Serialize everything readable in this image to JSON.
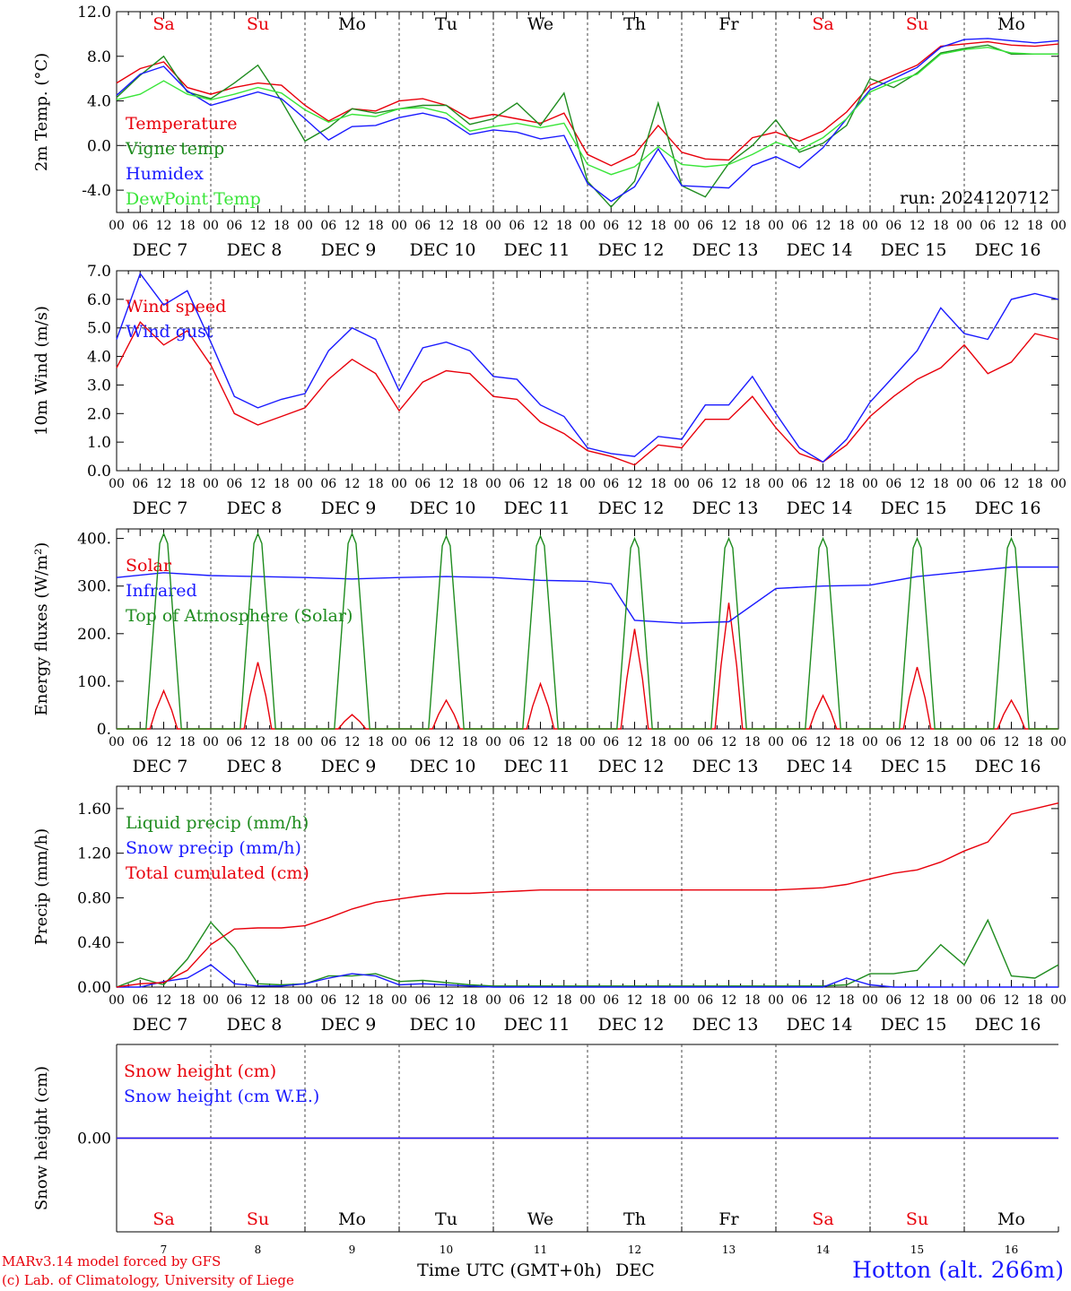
{
  "colors": {
    "red": "#e8000b",
    "green": "#1f8c1f",
    "blue": "#1a1aff",
    "lightgreen": "#39e539",
    "grey": "#333333"
  },
  "days": [
    "7",
    "8",
    "9",
    "10",
    "11",
    "12",
    "13",
    "14",
    "15",
    "16"
  ],
  "day_labels": [
    "DEC  7",
    "DEC  8",
    "DEC  9",
    "DEC 10",
    "DEC 11",
    "DEC 12",
    "DEC 13",
    "DEC 14",
    "DEC 15",
    "DEC 16"
  ],
  "weekdays": [
    {
      "label": "Sa",
      "color": "red"
    },
    {
      "label": "Su",
      "color": "red"
    },
    {
      "label": "Mo",
      "color": "black"
    },
    {
      "label": "Tu",
      "color": "black"
    },
    {
      "label": "We",
      "color": "black"
    },
    {
      "label": "Th",
      "color": "black"
    },
    {
      "label": "Fr",
      "color": "black"
    },
    {
      "label": "Sa",
      "color": "red"
    },
    {
      "label": "Su",
      "color": "red"
    },
    {
      "label": "Mo",
      "color": "black"
    }
  ],
  "hour_labels": [
    "00",
    "06",
    "12",
    "18"
  ],
  "footer": {
    "credit_line1": "MARv3.14 model forced by GFS",
    "credit_line2": "(c) Lab. of Climatology, University of Liege",
    "xlabel": "Time UTC (GMT+0h)",
    "xunit": "DEC",
    "station": "Hotton (alt. 266m)"
  },
  "chart_data": [
    {
      "type": "line",
      "ylabel": "2m Temp. (°C)",
      "ylim": [
        -6,
        12
      ],
      "yticks": [
        -4,
        0,
        4,
        8,
        12
      ],
      "ytick_labels": [
        "-4.0",
        "0.0",
        "4.0",
        "8.0",
        "12.0"
      ],
      "ref_line": 0,
      "annotation": "run: 2024120712",
      "x_hours": [
        0,
        6,
        12,
        18,
        24,
        30,
        36,
        42,
        48,
        54,
        60,
        66,
        72,
        78,
        84,
        90,
        96,
        102,
        108,
        114,
        120,
        126,
        132,
        138,
        144,
        150,
        156,
        162,
        168,
        174,
        180,
        186,
        192,
        198,
        204,
        210,
        216,
        222,
        228,
        234,
        240
      ],
      "series": [
        {
          "name": "Temperature",
          "color": "red",
          "values": [
            5.6,
            6.9,
            7.5,
            5.2,
            4.6,
            5.2,
            5.6,
            5.4,
            3.6,
            2.2,
            3.3,
            3.1,
            4.0,
            4.2,
            3.6,
            2.4,
            2.8,
            2.4,
            2.0,
            2.9,
            -0.8,
            -1.8,
            -0.8,
            1.8,
            -0.6,
            -1.2,
            -1.3,
            0.7,
            1.2,
            0.4,
            1.3,
            3.0,
            5.4,
            6.3,
            7.2,
            8.9,
            9.1,
            9.3,
            9.0,
            8.9,
            9.1
          ]
        },
        {
          "name": "Vigne temp",
          "color": "green",
          "values": [
            4.3,
            6.3,
            8.0,
            4.8,
            4.2,
            5.6,
            7.2,
            4.0,
            0.4,
            1.6,
            3.3,
            2.9,
            3.3,
            3.6,
            3.6,
            1.9,
            2.4,
            3.8,
            1.8,
            4.7,
            -3.2,
            -5.5,
            -3.2,
            3.8,
            -3.6,
            -4.6,
            -1.6,
            0.0,
            2.3,
            -0.6,
            0.2,
            1.8,
            6.0,
            5.2,
            6.5,
            8.3,
            8.7,
            9.0,
            8.2,
            8.2,
            8.2
          ]
        },
        {
          "name": "Humidex",
          "color": "blue",
          "values": [
            4.5,
            6.4,
            7.1,
            4.9,
            3.6,
            4.2,
            4.8,
            4.2,
            2.4,
            0.5,
            1.7,
            1.8,
            2.5,
            2.9,
            2.4,
            1.0,
            1.4,
            1.2,
            0.6,
            0.9,
            -3.4,
            -5.0,
            -3.7,
            -0.3,
            -3.6,
            -3.7,
            -3.8,
            -1.8,
            -1.0,
            -2.0,
            -0.2,
            2.4,
            5.0,
            6.0,
            7.0,
            8.8,
            9.5,
            9.6,
            9.4,
            9.2,
            9.4
          ]
        },
        {
          "name": "DewPoint Temp",
          "color": "lightgreen",
          "values": [
            4.1,
            4.6,
            5.8,
            4.6,
            4.1,
            4.6,
            5.2,
            4.7,
            3.2,
            2.1,
            2.8,
            2.6,
            3.3,
            3.4,
            2.9,
            1.3,
            1.7,
            2.0,
            1.6,
            2.0,
            -1.7,
            -2.6,
            -1.9,
            -0.1,
            -1.7,
            -1.9,
            -1.7,
            -0.8,
            0.3,
            -0.4,
            0.7,
            2.4,
            4.8,
            5.7,
            6.4,
            8.2,
            8.6,
            8.8,
            8.3,
            8.2,
            8.2
          ]
        }
      ]
    },
    {
      "type": "line",
      "ylabel": "10m Wind (m/s)",
      "ylim": [
        0,
        7
      ],
      "yticks": [
        0,
        1,
        2,
        3,
        4,
        5,
        6,
        7
      ],
      "ytick_labels": [
        "0.0",
        "1.0",
        "2.0",
        "3.0",
        "4.0",
        "5.0",
        "6.0",
        "7.0"
      ],
      "ref_line": 5,
      "x_hours": [
        0,
        6,
        12,
        18,
        24,
        30,
        36,
        42,
        48,
        54,
        60,
        66,
        72,
        78,
        84,
        90,
        96,
        102,
        108,
        114,
        120,
        126,
        132,
        138,
        144,
        150,
        156,
        162,
        168,
        174,
        180,
        186,
        192,
        198,
        204,
        210,
        216,
        222,
        228,
        234,
        240
      ],
      "series": [
        {
          "name": "Wind speed",
          "color": "red",
          "values": [
            3.6,
            5.2,
            4.4,
            4.9,
            3.7,
            2.0,
            1.6,
            1.9,
            2.2,
            3.2,
            3.9,
            3.4,
            2.1,
            3.1,
            3.5,
            3.4,
            2.6,
            2.5,
            1.7,
            1.3,
            0.7,
            0.5,
            0.2,
            0.9,
            0.8,
            1.8,
            1.8,
            2.6,
            1.5,
            0.6,
            0.3,
            0.9,
            1.9,
            2.6,
            3.2,
            3.6,
            4.4,
            3.4,
            3.8,
            4.8,
            4.6
          ]
        },
        {
          "name": "Wind gust",
          "color": "blue",
          "values": [
            4.6,
            6.9,
            5.8,
            6.3,
            4.5,
            2.6,
            2.2,
            2.5,
            2.7,
            4.2,
            5.0,
            4.6,
            2.8,
            4.3,
            4.5,
            4.2,
            3.3,
            3.2,
            2.3,
            1.9,
            0.8,
            0.6,
            0.5,
            1.2,
            1.1,
            2.3,
            2.3,
            3.3,
            2.0,
            0.8,
            0.3,
            1.1,
            2.4,
            3.3,
            4.2,
            5.7,
            4.8,
            4.6,
            6.0,
            6.2,
            6.0
          ]
        }
      ]
    },
    {
      "type": "line",
      "ylabel": "Energy fluxes (W/m²)",
      "ylim": [
        0,
        420
      ],
      "yticks": [
        0,
        100,
        200,
        300,
        400
      ],
      "ytick_labels": [
        "0.",
        "100.",
        "200.",
        "300.",
        "400."
      ],
      "x_hours": [
        0,
        12,
        24,
        36,
        48,
        60,
        72,
        84,
        96,
        108,
        120,
        126,
        132,
        144,
        156,
        168,
        180,
        192,
        204,
        216,
        228,
        240
      ],
      "series": [
        {
          "name": "Solar",
          "color": "red",
          "daily_peaks": [
            80,
            140,
            30,
            60,
            95,
            210,
            265,
            70,
            130,
            60
          ]
        },
        {
          "name": "Infrared",
          "color": "blue",
          "values": [
            318,
            328,
            322,
            320,
            318,
            315,
            318,
            320,
            318,
            312,
            310,
            305,
            228,
            222,
            225,
            295,
            300,
            302,
            320,
            330,
            340,
            340
          ]
        },
        {
          "name": "Top of Atmosphere (Solar)",
          "color": "green",
          "daily_peaks": [
            410,
            410,
            410,
            405,
            405,
            400,
            400,
            400,
            400,
            400
          ]
        }
      ]
    },
    {
      "type": "line",
      "ylabel": "Precip (mm/h)",
      "ylim": [
        0,
        1.8
      ],
      "yticks": [
        0,
        0.4,
        0.8,
        1.2,
        1.6
      ],
      "ytick_labels": [
        "0.00",
        "0.40",
        "0.80",
        "1.20",
        "1.60"
      ],
      "x_hours": [
        0,
        6,
        12,
        18,
        24,
        30,
        36,
        42,
        48,
        54,
        60,
        66,
        72,
        78,
        84,
        90,
        96,
        102,
        108,
        114,
        120,
        126,
        132,
        138,
        144,
        150,
        156,
        162,
        168,
        174,
        180,
        186,
        192,
        198,
        204,
        210,
        216,
        222,
        228,
        234,
        240
      ],
      "series": [
        {
          "name": "Liquid precip (mm/h)",
          "color": "green",
          "values": [
            0.0,
            0.08,
            0.02,
            0.25,
            0.58,
            0.35,
            0.03,
            0.02,
            0.03,
            0.1,
            0.1,
            0.12,
            0.05,
            0.06,
            0.04,
            0.02,
            0.01,
            0.01,
            0.01,
            0.01,
            0.01,
            0.01,
            0.01,
            0.01,
            0.01,
            0.01,
            0.01,
            0.01,
            0.01,
            0.01,
            0.01,
            0.02,
            0.12,
            0.12,
            0.15,
            0.38,
            0.2,
            0.6,
            0.1,
            0.08,
            0.2
          ]
        },
        {
          "name": "Snow precip (mm/h)",
          "color": "blue",
          "values": [
            0.0,
            0.0,
            0.05,
            0.08,
            0.2,
            0.03,
            0.01,
            0.01,
            0.03,
            0.08,
            0.12,
            0.1,
            0.02,
            0.03,
            0.02,
            0.01,
            0.0,
            0.0,
            0.0,
            0.0,
            0.0,
            0.0,
            0.0,
            0.0,
            0.0,
            0.0,
            0.0,
            0.0,
            0.0,
            0.0,
            0.0,
            0.08,
            0.02,
            0.0,
            0.0,
            0.0,
            0.0,
            0.0,
            0.0,
            0.0,
            0.0
          ]
        },
        {
          "name": "Total cumulated (cm)",
          "color": "red",
          "values": [
            0.0,
            0.03,
            0.04,
            0.15,
            0.38,
            0.52,
            0.53,
            0.53,
            0.55,
            0.62,
            0.7,
            0.76,
            0.79,
            0.82,
            0.84,
            0.84,
            0.85,
            0.86,
            0.87,
            0.87,
            0.87,
            0.87,
            0.87,
            0.87,
            0.87,
            0.87,
            0.87,
            0.87,
            0.87,
            0.88,
            0.89,
            0.92,
            0.97,
            1.02,
            1.05,
            1.12,
            1.22,
            1.3,
            1.55,
            1.6,
            1.65
          ]
        }
      ]
    },
    {
      "type": "line",
      "ylabel": "Snow height (cm)",
      "ylim": [
        -1,
        1
      ],
      "yticks": [
        0
      ],
      "ytick_labels": [
        "0.00"
      ],
      "x_hours": [
        0,
        240
      ],
      "series": [
        {
          "name": "Snow height (cm)",
          "color": "red",
          "values": [
            0,
            0
          ]
        },
        {
          "name": "Snow height (cm W.E.)",
          "color": "blue",
          "values": [
            0,
            0
          ]
        }
      ]
    }
  ]
}
